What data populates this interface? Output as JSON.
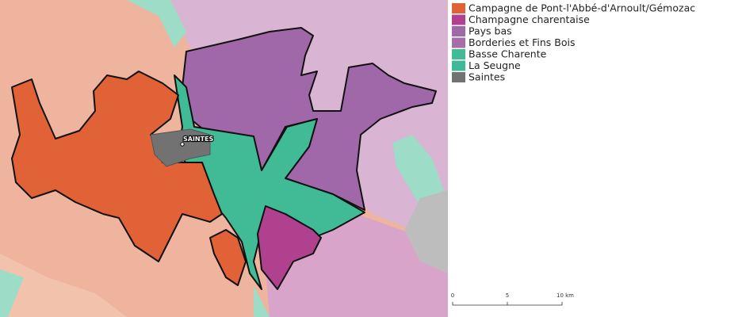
{
  "legend": [
    {
      "label": "Campagne de Pont-l'Abbé-d'Arnoult/Gémozac",
      "color": "#e06236"
    },
    {
      "label": "Champagne charentaise",
      "color": "#b0418e"
    },
    {
      "label": "Pays bas",
      "color": "#a068a8"
    },
    {
      "label": "Borderies et Fins Bois",
      "color": "#a56ea9"
    },
    {
      "label": "Basse Charente",
      "color": "#40bb96"
    },
    {
      "label": "La Seugne",
      "color": "#3fba98"
    },
    {
      "label": "Saintes",
      "color": "#727273"
    }
  ],
  "map": {
    "city": "SAINTES"
  },
  "scale": {
    "labels": [
      "0",
      "5",
      "10 km"
    ]
  }
}
